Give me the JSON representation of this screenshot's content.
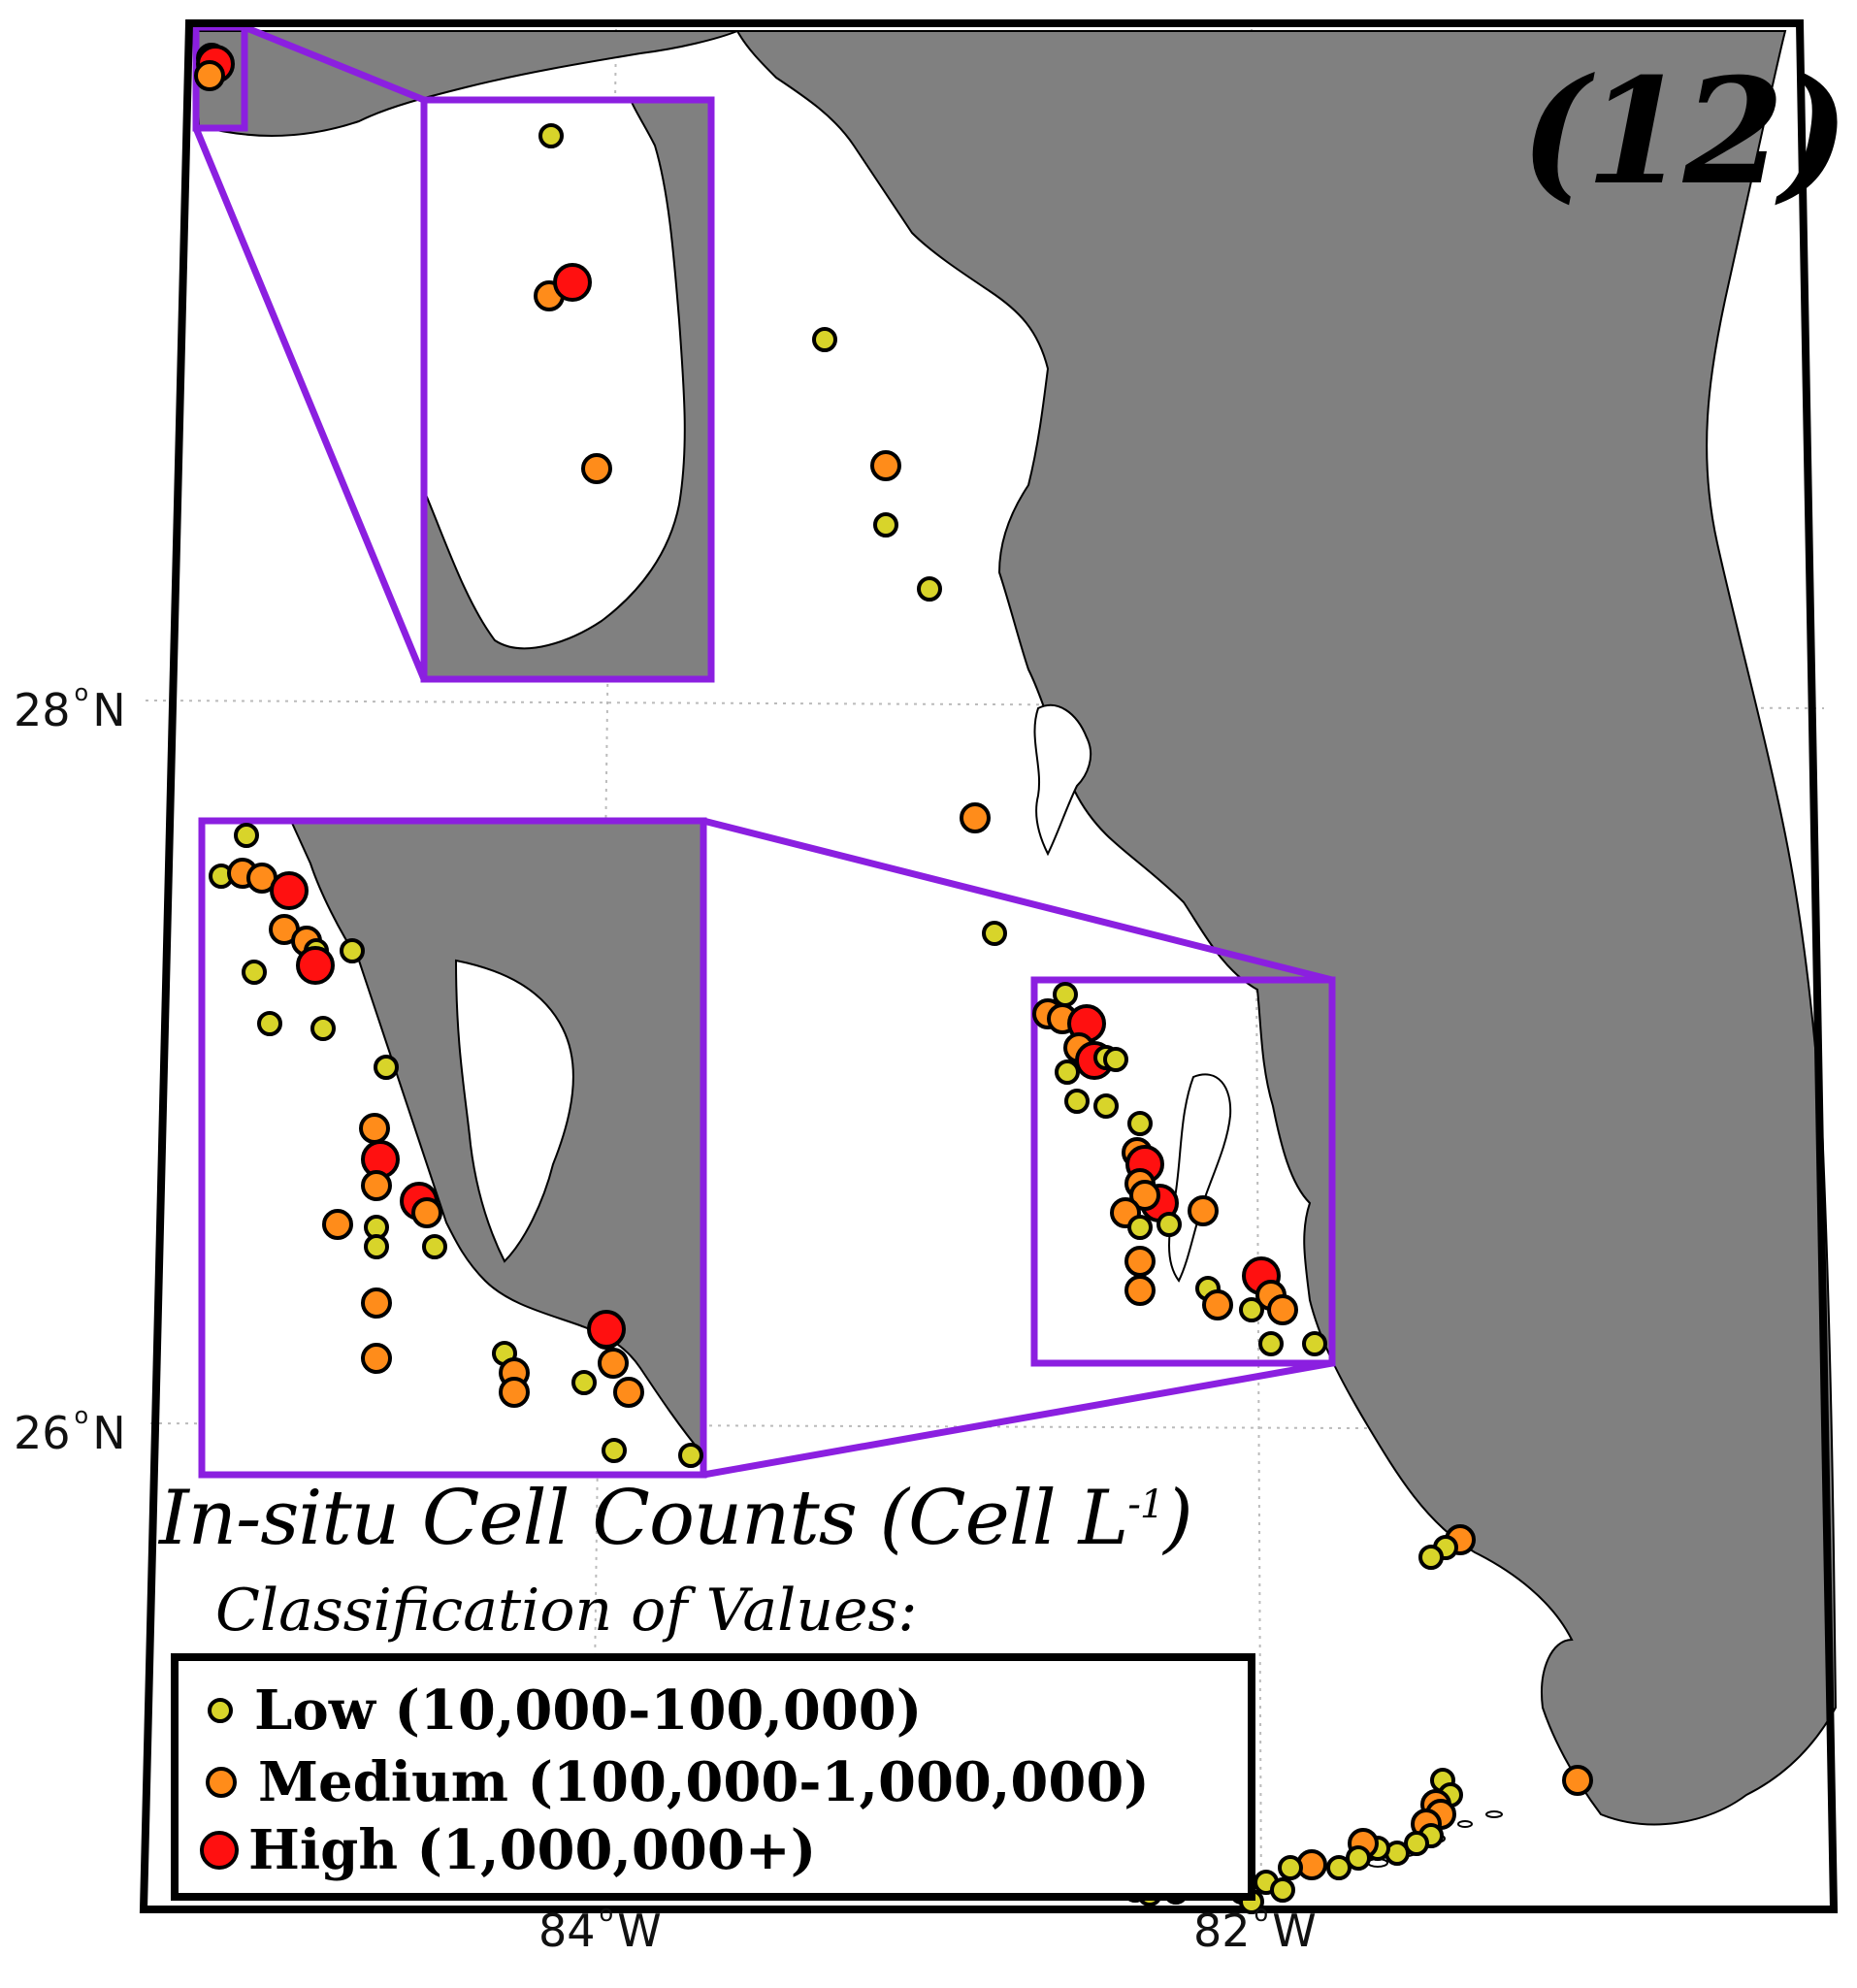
{
  "panel_label": "(12)",
  "axes": {
    "lat_labels": [
      {
        "deg": "28",
        "hemi": "N"
      },
      {
        "deg": "26",
        "hemi": "N"
      }
    ],
    "lon_labels": [
      {
        "deg": "84",
        "hemi": "W"
      },
      {
        "deg": "82",
        "hemi": "W"
      }
    ]
  },
  "legend": {
    "title": "In-situ Cell Counts (Cell L",
    "title_sup": "-1",
    "title_end": ")",
    "subtitle": "Classification of Values:",
    "entries": [
      {
        "key": "low",
        "label": "Low (10,000-100,000)"
      },
      {
        "key": "medium",
        "label": "Medium (100,000-1,000,000)"
      },
      {
        "key": "high",
        "label": "High (1,000,000+)"
      }
    ]
  },
  "colors": {
    "land": "#808080",
    "water": "#ffffff",
    "inset_frame": "#8b1fe0",
    "low": "#d8d42a",
    "medium": "#ff8c1a",
    "high": "#ff1010"
  }
}
